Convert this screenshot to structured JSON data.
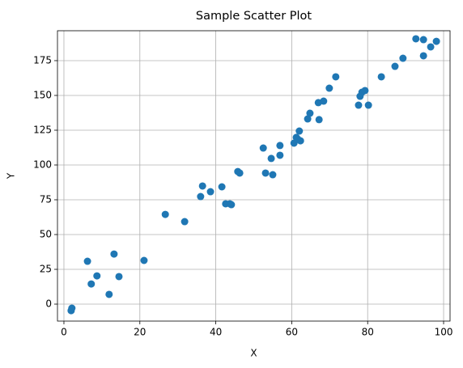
{
  "chart_data": {
    "type": "scatter",
    "title": "Sample Scatter Plot",
    "x_label": "X",
    "y_label": "Y",
    "color": "#1f77b4",
    "grid": true,
    "xlim": [
      -1.7,
      101.7
    ],
    "ylim": [
      -12.2,
      196.5
    ],
    "xticks": [
      0,
      20,
      40,
      60,
      80,
      100
    ],
    "yticks": [
      0,
      25,
      50,
      75,
      100,
      125,
      150,
      175
    ],
    "x": [
      1.9,
      2.1,
      6.2,
      7.2,
      8.7,
      11.9,
      13.2,
      14.5,
      21.1,
      26.7,
      31.8,
      36.0,
      36.5,
      38.6,
      41.6,
      42.6,
      43.7,
      44.1,
      45.8,
      46.3,
      52.5,
      53.1,
      54.6,
      55.0,
      56.9,
      56.9,
      60.6,
      61.2,
      62.0,
      61.6,
      62.3,
      64.2,
      64.8,
      67.0,
      67.2,
      68.4,
      69.9,
      71.6,
      77.6,
      78.0,
      78.5,
      79.3,
      80.2,
      83.6,
      87.2,
      89.3,
      92.7,
      94.7,
      94.7,
      96.6,
      98.1
    ],
    "y": [
      -4.7,
      -2.9,
      30.8,
      14.5,
      20.3,
      7.0,
      36.0,
      19.8,
      31.4,
      64.5,
      59.3,
      77.3,
      84.9,
      80.8,
      84.3,
      72.1,
      72.1,
      71.5,
      95.3,
      94.2,
      112.2,
      94.2,
      104.7,
      93.0,
      114.0,
      107.0,
      115.7,
      119.8,
      124.4,
      118.6,
      117.4,
      133.1,
      137.2,
      144.8,
      132.6,
      145.9,
      155.2,
      163.4,
      143.0,
      149.4,
      152.3,
      153.5,
      143.0,
      163.4,
      170.9,
      176.7,
      190.7,
      190.1,
      178.5,
      184.9,
      188.9
    ]
  }
}
